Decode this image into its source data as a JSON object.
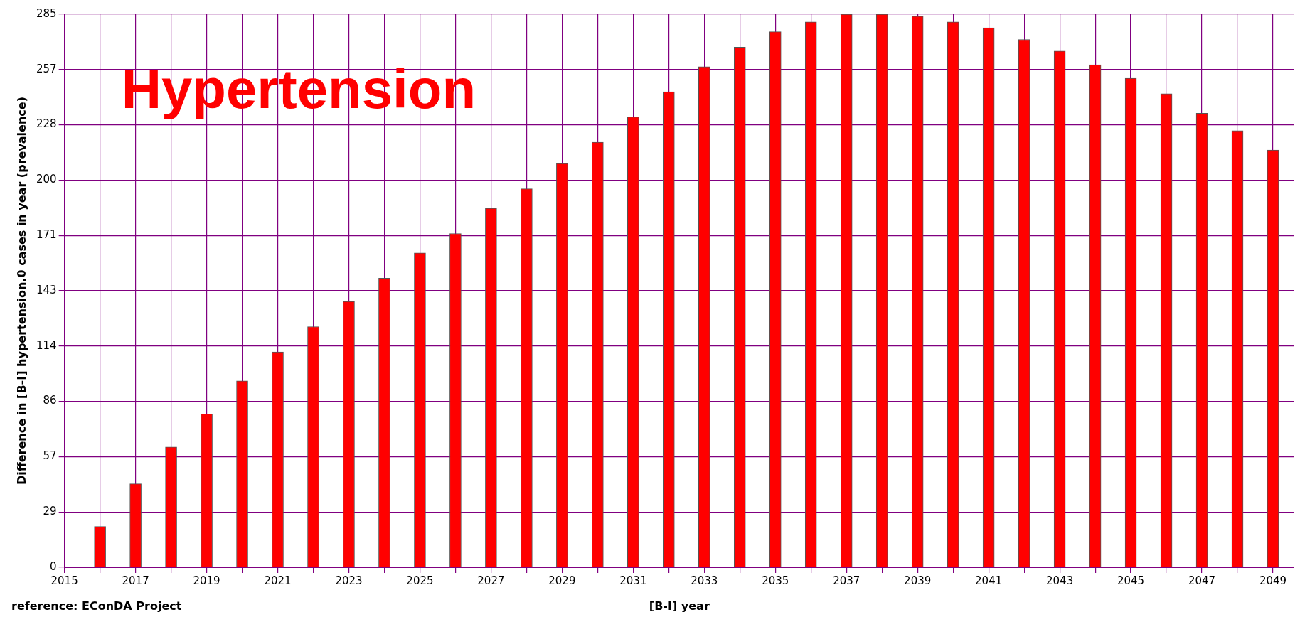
{
  "chart_data": {
    "type": "bar",
    "title": "Hypertension",
    "xlabel": "[B-I] year",
    "ylabel": "Difference in [B-I] hypertension.0 cases in year (prevalence)",
    "annotations": [
      "reference: EConDA Project"
    ],
    "x": [
      2016,
      2017,
      2018,
      2019,
      2020,
      2021,
      2022,
      2023,
      2024,
      2025,
      2026,
      2027,
      2028,
      2029,
      2030,
      2031,
      2032,
      2033,
      2034,
      2035,
      2036,
      2037,
      2038,
      2039,
      2040,
      2041,
      2042,
      2043,
      2044,
      2045,
      2046,
      2047,
      2048,
      2049
    ],
    "values": [
      21,
      43,
      62,
      79,
      96,
      111,
      124,
      137,
      149,
      162,
      172,
      185,
      195,
      208,
      219,
      232,
      245,
      258,
      268,
      276,
      281,
      285,
      285,
      284,
      281,
      278,
      272,
      266,
      259,
      252,
      244,
      234,
      225,
      215
    ],
    "color": "#ff0000",
    "xlim": [
      2015,
      2049.6
    ],
    "xticks": [
      2015,
      {
        "value": 2016,
        "label": null
      },
      2017,
      {
        "value": 2018,
        "label": null
      },
      2019,
      {
        "value": 2020,
        "label": null
      },
      2021,
      {
        "value": 2022,
        "label": null
      },
      2023,
      {
        "value": 2024,
        "label": null
      },
      2025,
      {
        "value": 2026,
        "label": null
      },
      2027,
      {
        "value": 2028,
        "label": null
      },
      2029,
      {
        "value": 2030,
        "label": null
      },
      2031,
      {
        "value": 2032,
        "label": null
      },
      2033,
      {
        "value": 2034,
        "label": null
      },
      2035,
      {
        "value": 2036,
        "label": null
      },
      2037,
      {
        "value": 2038,
        "label": null
      },
      2039,
      {
        "value": 2040,
        "label": null
      },
      2041,
      {
        "value": 2042,
        "label": null
      },
      2043,
      {
        "value": 2044,
        "label": null
      },
      2045,
      {
        "value": 2046,
        "label": null
      },
      2047,
      {
        "value": 2048,
        "label": null
      },
      2049
    ],
    "ylim": [
      0,
      285
    ],
    "yticks": [
      0,
      {
        "value": 28.5,
        "label": "29"
      },
      57,
      {
        "value": 85.5,
        "label": "86"
      },
      114,
      {
        "value": 142.5,
        "label": "143"
      },
      171,
      {
        "value": 199.5,
        "label": "200"
      },
      228,
      {
        "value": 256.5,
        "label": "257"
      },
      285
    ],
    "grid": true,
    "legend": false
  }
}
